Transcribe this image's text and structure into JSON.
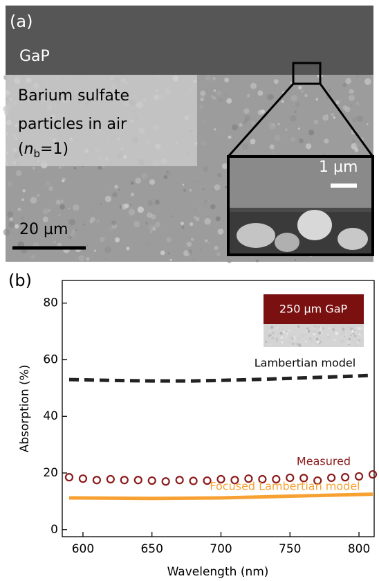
{
  "panel_a": {
    "panel_label": "(a)",
    "layer_label": "GaP",
    "medium_lines": [
      "Barium sulfate",
      "particles in air"
    ],
    "index_label": {
      "open": "(",
      "symbol": "n",
      "subscript": "b",
      "close": "=1)"
    },
    "inset_scale": "1 µm",
    "main_scale": "20 µm"
  },
  "chart_data": {
    "type": "line",
    "panel_label": "(b)",
    "x_label": "Wavelength (nm)",
    "y_label": "Absorption (%)",
    "inset_label": "250 µm GaP",
    "xlim": [
      585,
      811
    ],
    "ylim": [
      -2.5,
      88
    ],
    "xticks": [
      600,
      650,
      700,
      750,
      800
    ],
    "yticks": [
      0,
      20,
      40,
      60,
      80
    ],
    "series": [
      {
        "name": "Lambertian model",
        "color": "#222222",
        "style": "dashed",
        "x": [
          590,
          620,
          650,
          680,
          700,
          730,
          760,
          790,
          810
        ],
        "values": [
          53,
          52.7,
          52.5,
          52.5,
          52.7,
          53.1,
          53.6,
          54.1,
          54.5
        ]
      },
      {
        "name": "Measured",
        "color": "#8b1a1a",
        "style": "markers",
        "x": [
          590,
          600,
          610,
          620,
          630,
          640,
          650,
          660,
          670,
          680,
          690,
          700,
          710,
          720,
          730,
          740,
          750,
          760,
          770,
          780,
          790,
          800,
          810
        ],
        "values": [
          18.5,
          18,
          17.5,
          17.8,
          17.5,
          17.5,
          17.3,
          17,
          17.5,
          17.2,
          17.3,
          17.8,
          17.5,
          18,
          17.8,
          17.8,
          18.3,
          18.2,
          17.3,
          18.3,
          18.5,
          18.8,
          19.5
        ]
      },
      {
        "name": "Focused Lambertian model",
        "color": "#f7a133",
        "style": "solid",
        "x": [
          590,
          650,
          700,
          750,
          810
        ],
        "values": [
          11.2,
          11,
          11.2,
          11.8,
          12.5
        ]
      }
    ]
  }
}
